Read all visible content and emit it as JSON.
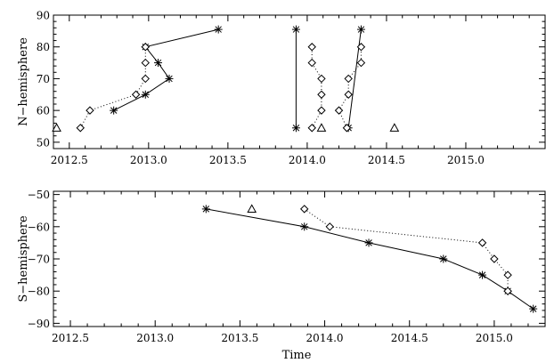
{
  "chart_data": [
    {
      "type": "scatter",
      "title": "",
      "xlabel": "",
      "ylabel": "N−hemisphere",
      "xlim": [
        2012.4,
        2015.5
      ],
      "ylim": [
        48,
        90
      ],
      "xticks": [
        2012.5,
        2013.0,
        2013.5,
        2014.0,
        2014.5,
        2015.0
      ],
      "xtick_labels": [
        "2012.5",
        "2013.0",
        "2013.5",
        "2014.0",
        "2014.5",
        "2015.0"
      ],
      "yticks": [
        50,
        60,
        70,
        80,
        90
      ],
      "ytick_labels": [
        "50",
        "60",
        "70",
        "80",
        "90"
      ],
      "grid": false,
      "series": [
        {
          "marker": "asterisk",
          "line": "solid",
          "segments": [
            [
              [
                2012.78,
                60
              ],
              [
                2012.98,
                65
              ],
              [
                2013.13,
                70
              ],
              [
                2013.06,
                75
              ],
              [
                2012.98,
                80
              ],
              [
                2013.44,
                85.5
              ]
            ],
            [
              [
                2013.93,
                85.5
              ],
              [
                2013.93,
                54.5
              ]
            ],
            [
              [
                2014.26,
                54.5
              ],
              [
                2014.34,
                85.5
              ]
            ]
          ]
        },
        {
          "marker": "diamond",
          "line": "dotted",
          "segments": [
            [
              [
                2012.57,
                54.5
              ],
              [
                2012.63,
                60
              ],
              [
                2012.92,
                65
              ],
              [
                2012.98,
                70
              ],
              [
                2012.98,
                75
              ],
              [
                2012.98,
                80
              ]
            ],
            [
              [
                2014.03,
                54.5
              ],
              [
                2014.09,
                60
              ],
              [
                2014.09,
                65
              ],
              [
                2014.09,
                70
              ],
              [
                2014.03,
                75
              ],
              [
                2014.03,
                80
              ]
            ],
            [
              [
                2014.25,
                54.5
              ],
              [
                2014.2,
                60
              ],
              [
                2014.26,
                65
              ],
              [
                2014.26,
                70
              ],
              [
                2014.34,
                75
              ],
              [
                2014.34,
                80
              ]
            ]
          ]
        },
        {
          "marker": "triangle",
          "line": "none",
          "segments": [
            [
              [
                2012.42,
                54.5
              ]
            ],
            [
              [
                2014.09,
                54.5
              ]
            ],
            [
              [
                2014.55,
                54.5
              ]
            ]
          ]
        }
      ]
    },
    {
      "type": "scatter",
      "title": "",
      "xlabel": "Time",
      "ylabel": "S−hemisphere",
      "xlim": [
        2012.4,
        2015.3
      ],
      "ylim": [
        -91,
        -49
      ],
      "xticks": [
        2012.5,
        2013.0,
        2013.5,
        2014.0,
        2014.5,
        2015.0
      ],
      "xtick_labels": [
        "2012.5",
        "2013.0",
        "2013.5",
        "2014.0",
        "2014.5",
        "2015.0"
      ],
      "yticks": [
        -90,
        -80,
        -70,
        -60,
        -50
      ],
      "ytick_labels": [
        "−90",
        "−80",
        "−70",
        "−60",
        "−50"
      ],
      "grid": false,
      "series": [
        {
          "marker": "asterisk",
          "line": "solid",
          "segments": [
            [
              [
                2013.3,
                -54.5
              ],
              [
                2013.88,
                -60
              ],
              [
                2014.26,
                -65
              ],
              [
                2014.7,
                -70
              ],
              [
                2014.93,
                -75
              ],
              [
                2015.08,
                -80
              ],
              [
                2015.23,
                -85.5
              ]
            ]
          ]
        },
        {
          "marker": "diamond",
          "line": "dotted",
          "segments": [
            [
              [
                2013.88,
                -54.5
              ],
              [
                2014.03,
                -60
              ],
              [
                2014.93,
                -65
              ],
              [
                2015.0,
                -70
              ],
              [
                2015.08,
                -75
              ],
              [
                2015.08,
                -80
              ]
            ]
          ]
        },
        {
          "marker": "triangle",
          "line": "none",
          "segments": [
            [
              [
                2013.57,
                -54.5
              ]
            ]
          ]
        }
      ]
    }
  ]
}
